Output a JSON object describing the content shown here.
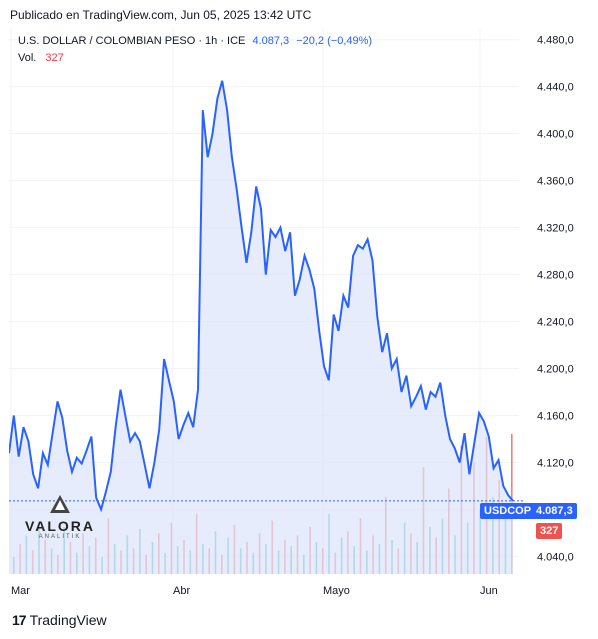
{
  "published": "Publicado en TradingView.com, Jun 05, 2025 13:42 UTC",
  "legend": {
    "symbol": "U.S. DOLLAR / COLOMBIAN PESO · 1h · ICE",
    "value": "4.087,3",
    "change": "−20,2 (−0,49%)",
    "vol_label": "Vol.",
    "vol_value": "327"
  },
  "tags": {
    "symbol": "USDCOP",
    "price": "4.087,3",
    "volume": "327"
  },
  "colors": {
    "line": "#2962ff",
    "fill": "#dbe4fb",
    "vol_up": "#26a69a",
    "vol_down": "#ef5350"
  },
  "watermark": {
    "name": "VALORA",
    "sub": "ANALITIK"
  },
  "footer": {
    "brand": "TradingView"
  },
  "chart_data": {
    "type": "area",
    "x_labels": [
      "Mar",
      "Abr",
      "Mayo",
      "Jun"
    ],
    "y_ticks": [
      4040,
      4080,
      4120,
      4160,
      4200,
      4240,
      4280,
      4320,
      4360,
      4400,
      4440,
      4480
    ],
    "y_tick_labels": [
      "4.040,0",
      "4.080,0",
      "4.120,0",
      "4.160,0",
      "4.200,0",
      "4.240,0",
      "4.280,0",
      "4.320,0",
      "4.360,0",
      "4.400,0",
      "4.440,0",
      "4.480,0"
    ],
    "ylim": [
      4025,
      4490
    ],
    "last_value": 4087.3,
    "series": [
      {
        "values": [
          4128,
          4160,
          4125,
          4150,
          4138,
          4110,
          4098,
          4128,
          4118,
          4145,
          4172,
          4158,
          4130,
          4112,
          4124,
          4119,
          4130,
          4142,
          4090,
          4080,
          4095,
          4112,
          4150,
          4182,
          4160,
          4138,
          4145,
          4138,
          4118,
          4098,
          4120,
          4148,
          4208,
          4190,
          4172,
          4140,
          4152,
          4162,
          4150,
          4182,
          4420,
          4380,
          4400,
          4430,
          4445,
          4420,
          4380,
          4352,
          4320,
          4290,
          4316,
          4355,
          4336,
          4280,
          4318,
          4312,
          4320,
          4300,
          4316,
          4262,
          4276,
          4296,
          4284,
          4268,
          4232,
          4202,
          4190,
          4246,
          4232,
          4262,
          4252,
          4296,
          4305,
          4302,
          4310,
          4292,
          4244,
          4214,
          4230,
          4200,
          4208,
          4180,
          4194,
          4168,
          4176,
          4185,
          4165,
          4180,
          4176,
          4188,
          4160,
          4140,
          4132,
          4120,
          4145,
          4110,
          4136,
          4162,
          4155,
          4142,
          4115,
          4122,
          4100,
          4092,
          4087.3
        ]
      }
    ],
    "volume": [
      {
        "v": 40,
        "up": true
      },
      {
        "v": 70,
        "up": false
      },
      {
        "v": 90,
        "up": true
      },
      {
        "v": 55,
        "up": false
      },
      {
        "v": 120,
        "up": true
      },
      {
        "v": 80,
        "up": false
      },
      {
        "v": 60,
        "up": true
      },
      {
        "v": 45,
        "up": false
      },
      {
        "v": 110,
        "up": true
      },
      {
        "v": 75,
        "up": false
      },
      {
        "v": 50,
        "up": true
      },
      {
        "v": 95,
        "up": false
      },
      {
        "v": 65,
        "up": true
      },
      {
        "v": 85,
        "up": false
      },
      {
        "v": 40,
        "up": true
      },
      {
        "v": 130,
        "up": false
      },
      {
        "v": 70,
        "up": true
      },
      {
        "v": 55,
        "up": false
      },
      {
        "v": 90,
        "up": true
      },
      {
        "v": 60,
        "up": false
      },
      {
        "v": 105,
        "up": true
      },
      {
        "v": 45,
        "up": false
      },
      {
        "v": 75,
        "up": true
      },
      {
        "v": 95,
        "up": false
      },
      {
        "v": 50,
        "up": true
      },
      {
        "v": 120,
        "up": false
      },
      {
        "v": 65,
        "up": true
      },
      {
        "v": 80,
        "up": false
      },
      {
        "v": 55,
        "up": true
      },
      {
        "v": 140,
        "up": false
      },
      {
        "v": 70,
        "up": true
      },
      {
        "v": 60,
        "up": false
      },
      {
        "v": 100,
        "up": true
      },
      {
        "v": 45,
        "up": false
      },
      {
        "v": 85,
        "up": true
      },
      {
        "v": 115,
        "up": false
      },
      {
        "v": 60,
        "up": true
      },
      {
        "v": 75,
        "up": false
      },
      {
        "v": 50,
        "up": true
      },
      {
        "v": 95,
        "up": false
      },
      {
        "v": 70,
        "up": true
      },
      {
        "v": 125,
        "up": false
      },
      {
        "v": 55,
        "up": true
      },
      {
        "v": 80,
        "up": false
      },
      {
        "v": 65,
        "up": true
      },
      {
        "v": 90,
        "up": false
      },
      {
        "v": 45,
        "up": true
      },
      {
        "v": 110,
        "up": false
      },
      {
        "v": 75,
        "up": true
      },
      {
        "v": 60,
        "up": false
      },
      {
        "v": 140,
        "up": true
      },
      {
        "v": 50,
        "up": false
      },
      {
        "v": 85,
        "up": true
      },
      {
        "v": 100,
        "up": false
      },
      {
        "v": 65,
        "up": true
      },
      {
        "v": 130,
        "up": false
      },
      {
        "v": 55,
        "up": true
      },
      {
        "v": 90,
        "up": false
      },
      {
        "v": 70,
        "up": true
      },
      {
        "v": 180,
        "up": false
      },
      {
        "v": 80,
        "up": true
      },
      {
        "v": 60,
        "up": false
      },
      {
        "v": 120,
        "up": true
      },
      {
        "v": 95,
        "up": false
      },
      {
        "v": 75,
        "up": true
      },
      {
        "v": 250,
        "up": false
      },
      {
        "v": 110,
        "up": true
      },
      {
        "v": 85,
        "up": false
      },
      {
        "v": 130,
        "up": true
      },
      {
        "v": 200,
        "up": false
      },
      {
        "v": 90,
        "up": true
      },
      {
        "v": 300,
        "up": false
      },
      {
        "v": 120,
        "up": true
      },
      {
        "v": 260,
        "up": false
      },
      {
        "v": 150,
        "up": true
      },
      {
        "v": 320,
        "up": false
      },
      {
        "v": 180,
        "up": true
      },
      {
        "v": 220,
        "up": false
      },
      {
        "v": 140,
        "up": true
      },
      {
        "v": 327,
        "up": false
      }
    ]
  }
}
